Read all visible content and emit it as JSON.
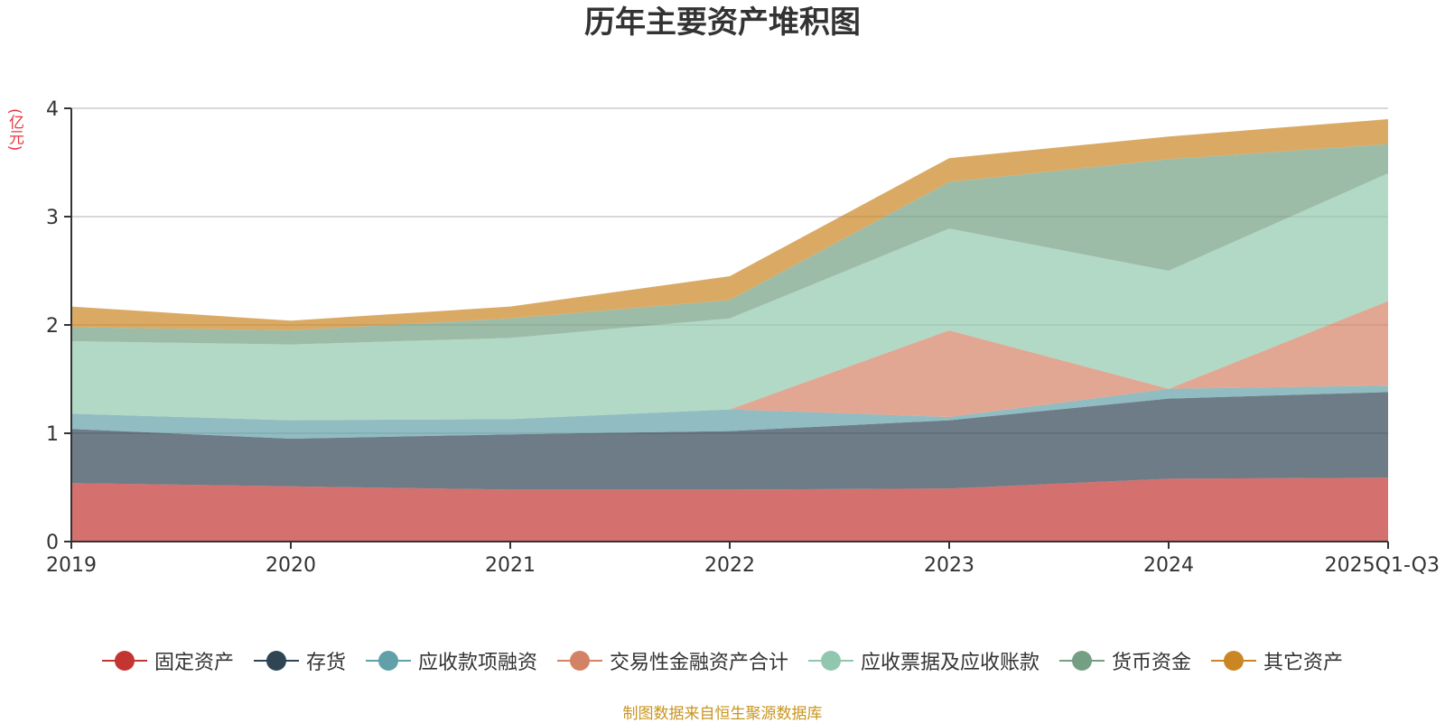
{
  "chart_data": {
    "type": "area",
    "stacked": true,
    "title": "历年主要资产堆积图",
    "unit_label": "(亿元)",
    "xlabel": "",
    "ylabel": "(亿元)",
    "categories": [
      "2019",
      "2020",
      "2021",
      "2022",
      "2023",
      "2024",
      "2025Q1-Q3"
    ],
    "ylim": [
      0,
      4
    ],
    "yticks": [
      "0",
      "1",
      "2",
      "3",
      "4"
    ],
    "grid": true,
    "legend_position": "bottom",
    "series": [
      {
        "name": "固定资产",
        "color": "#c23531",
        "values": [
          0.54,
          0.51,
          0.48,
          0.48,
          0.49,
          0.58,
          0.59
        ]
      },
      {
        "name": "存货",
        "color": "#2f4554",
        "values": [
          0.5,
          0.44,
          0.51,
          0.54,
          0.63,
          0.74,
          0.79
        ]
      },
      {
        "name": "应收款项融资",
        "color": "#61a0a8",
        "values": [
          0.14,
          0.17,
          0.14,
          0.2,
          0.03,
          0.09,
          0.06
        ]
      },
      {
        "name": "交易性金融资产合计",
        "color": "#d48265",
        "values": [
          0.0,
          0.0,
          0.0,
          0.0,
          0.8,
          0.0,
          0.78
        ]
      },
      {
        "name": "应收票据及应收账款",
        "color": "#91c7ae",
        "values": [
          0.67,
          0.7,
          0.75,
          0.84,
          0.94,
          1.09,
          1.18
        ]
      },
      {
        "name": "货币资金",
        "color": "#749f83",
        "values": [
          0.13,
          0.13,
          0.18,
          0.17,
          0.43,
          1.03,
          0.27
        ]
      },
      {
        "name": "其它资产",
        "color": "#ca8622",
        "values": [
          0.19,
          0.09,
          0.11,
          0.22,
          0.22,
          0.21,
          0.23
        ]
      }
    ],
    "source_note": "制图数据来自恒生聚源数据库"
  }
}
